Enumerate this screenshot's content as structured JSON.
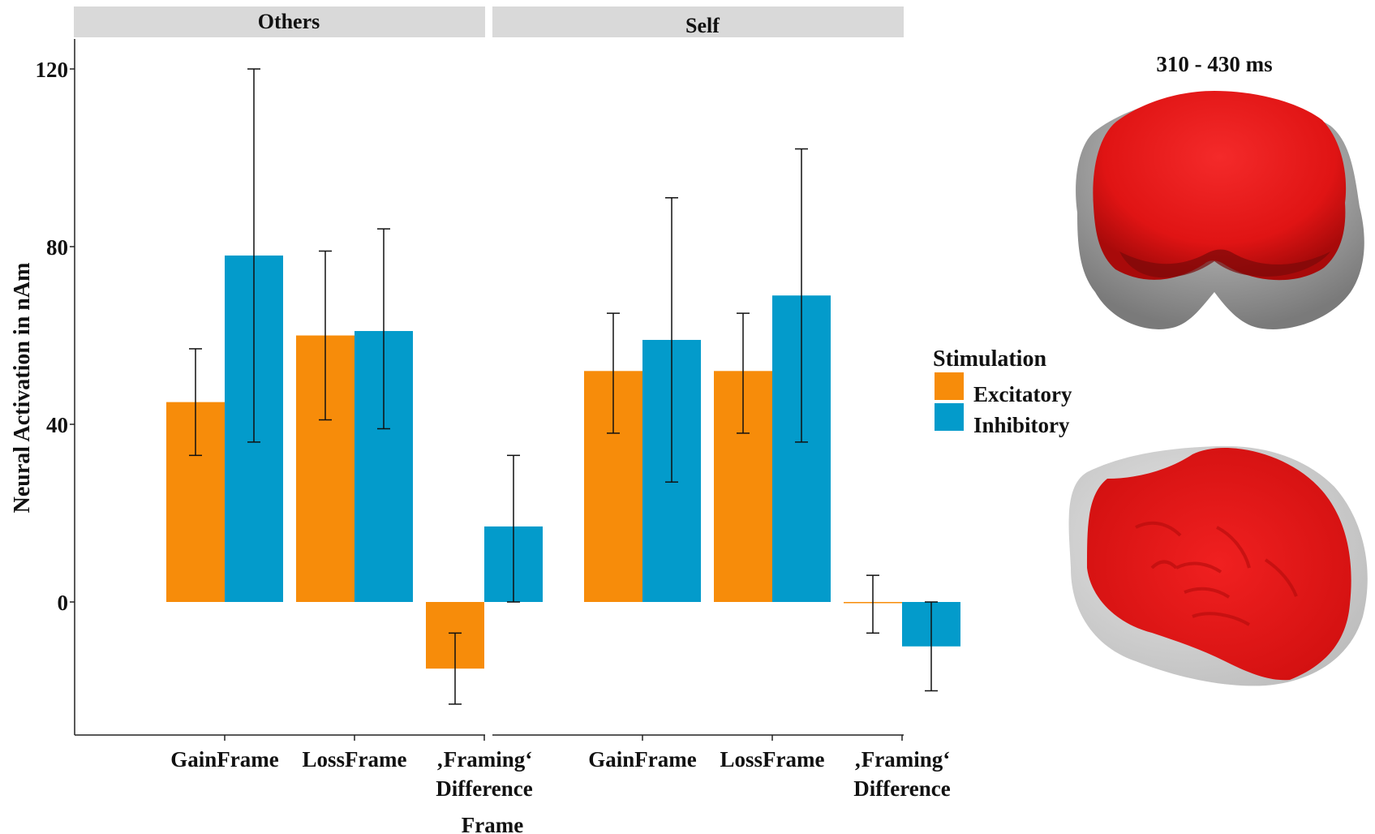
{
  "chart_data": {
    "type": "bar",
    "facets": [
      {
        "strip_label": "Others",
        "categories": [
          "GainFrame",
          "LossFrame",
          "‚Framing‘\nDifference"
        ],
        "series": [
          {
            "name": "Excitatory",
            "values": [
              45,
              60,
              -15
            ],
            "error_low": [
              33,
              41,
              -23
            ],
            "error_high": [
              57,
              79,
              -7
            ]
          },
          {
            "name": "Inhibitory",
            "values": [
              78,
              61,
              17
            ],
            "error_low": [
              36,
              39,
              0
            ],
            "error_high": [
              120,
              84,
              33
            ]
          }
        ]
      },
      {
        "strip_label": "Self",
        "categories": [
          "GainFrame",
          "LossFrame",
          "‚Framing‘\nDifference"
        ],
        "series": [
          {
            "name": "Excitatory",
            "values": [
              52,
              52,
              0
            ],
            "error_low": [
              38,
              38,
              -7
            ],
            "error_high": [
              65,
              65,
              6
            ]
          },
          {
            "name": "Inhibitory",
            "values": [
              59,
              69,
              -10
            ],
            "error_low": [
              27,
              36,
              -20
            ],
            "error_high": [
              91,
              102,
              0
            ]
          }
        ]
      }
    ],
    "ylabel": "Neural Activation in nAm",
    "xlabel": "Frame",
    "ylim": [
      -30,
      127
    ],
    "yticks": [
      0,
      40,
      80,
      120
    ],
    "legend": {
      "title": "Stimulation",
      "position": "right",
      "items": [
        "Excitatory",
        "Inhibitory"
      ]
    }
  },
  "colors": {
    "Excitatory": "#F78C0A",
    "Inhibitory": "#039BCB",
    "strip": "#D9D9D9",
    "brain_active": "#E41616",
    "brain_inactive": "#C8C8C8"
  },
  "brain_panel": {
    "time_window_label": "310 - 430 ms",
    "views": [
      "frontal-view",
      "top-view"
    ]
  }
}
